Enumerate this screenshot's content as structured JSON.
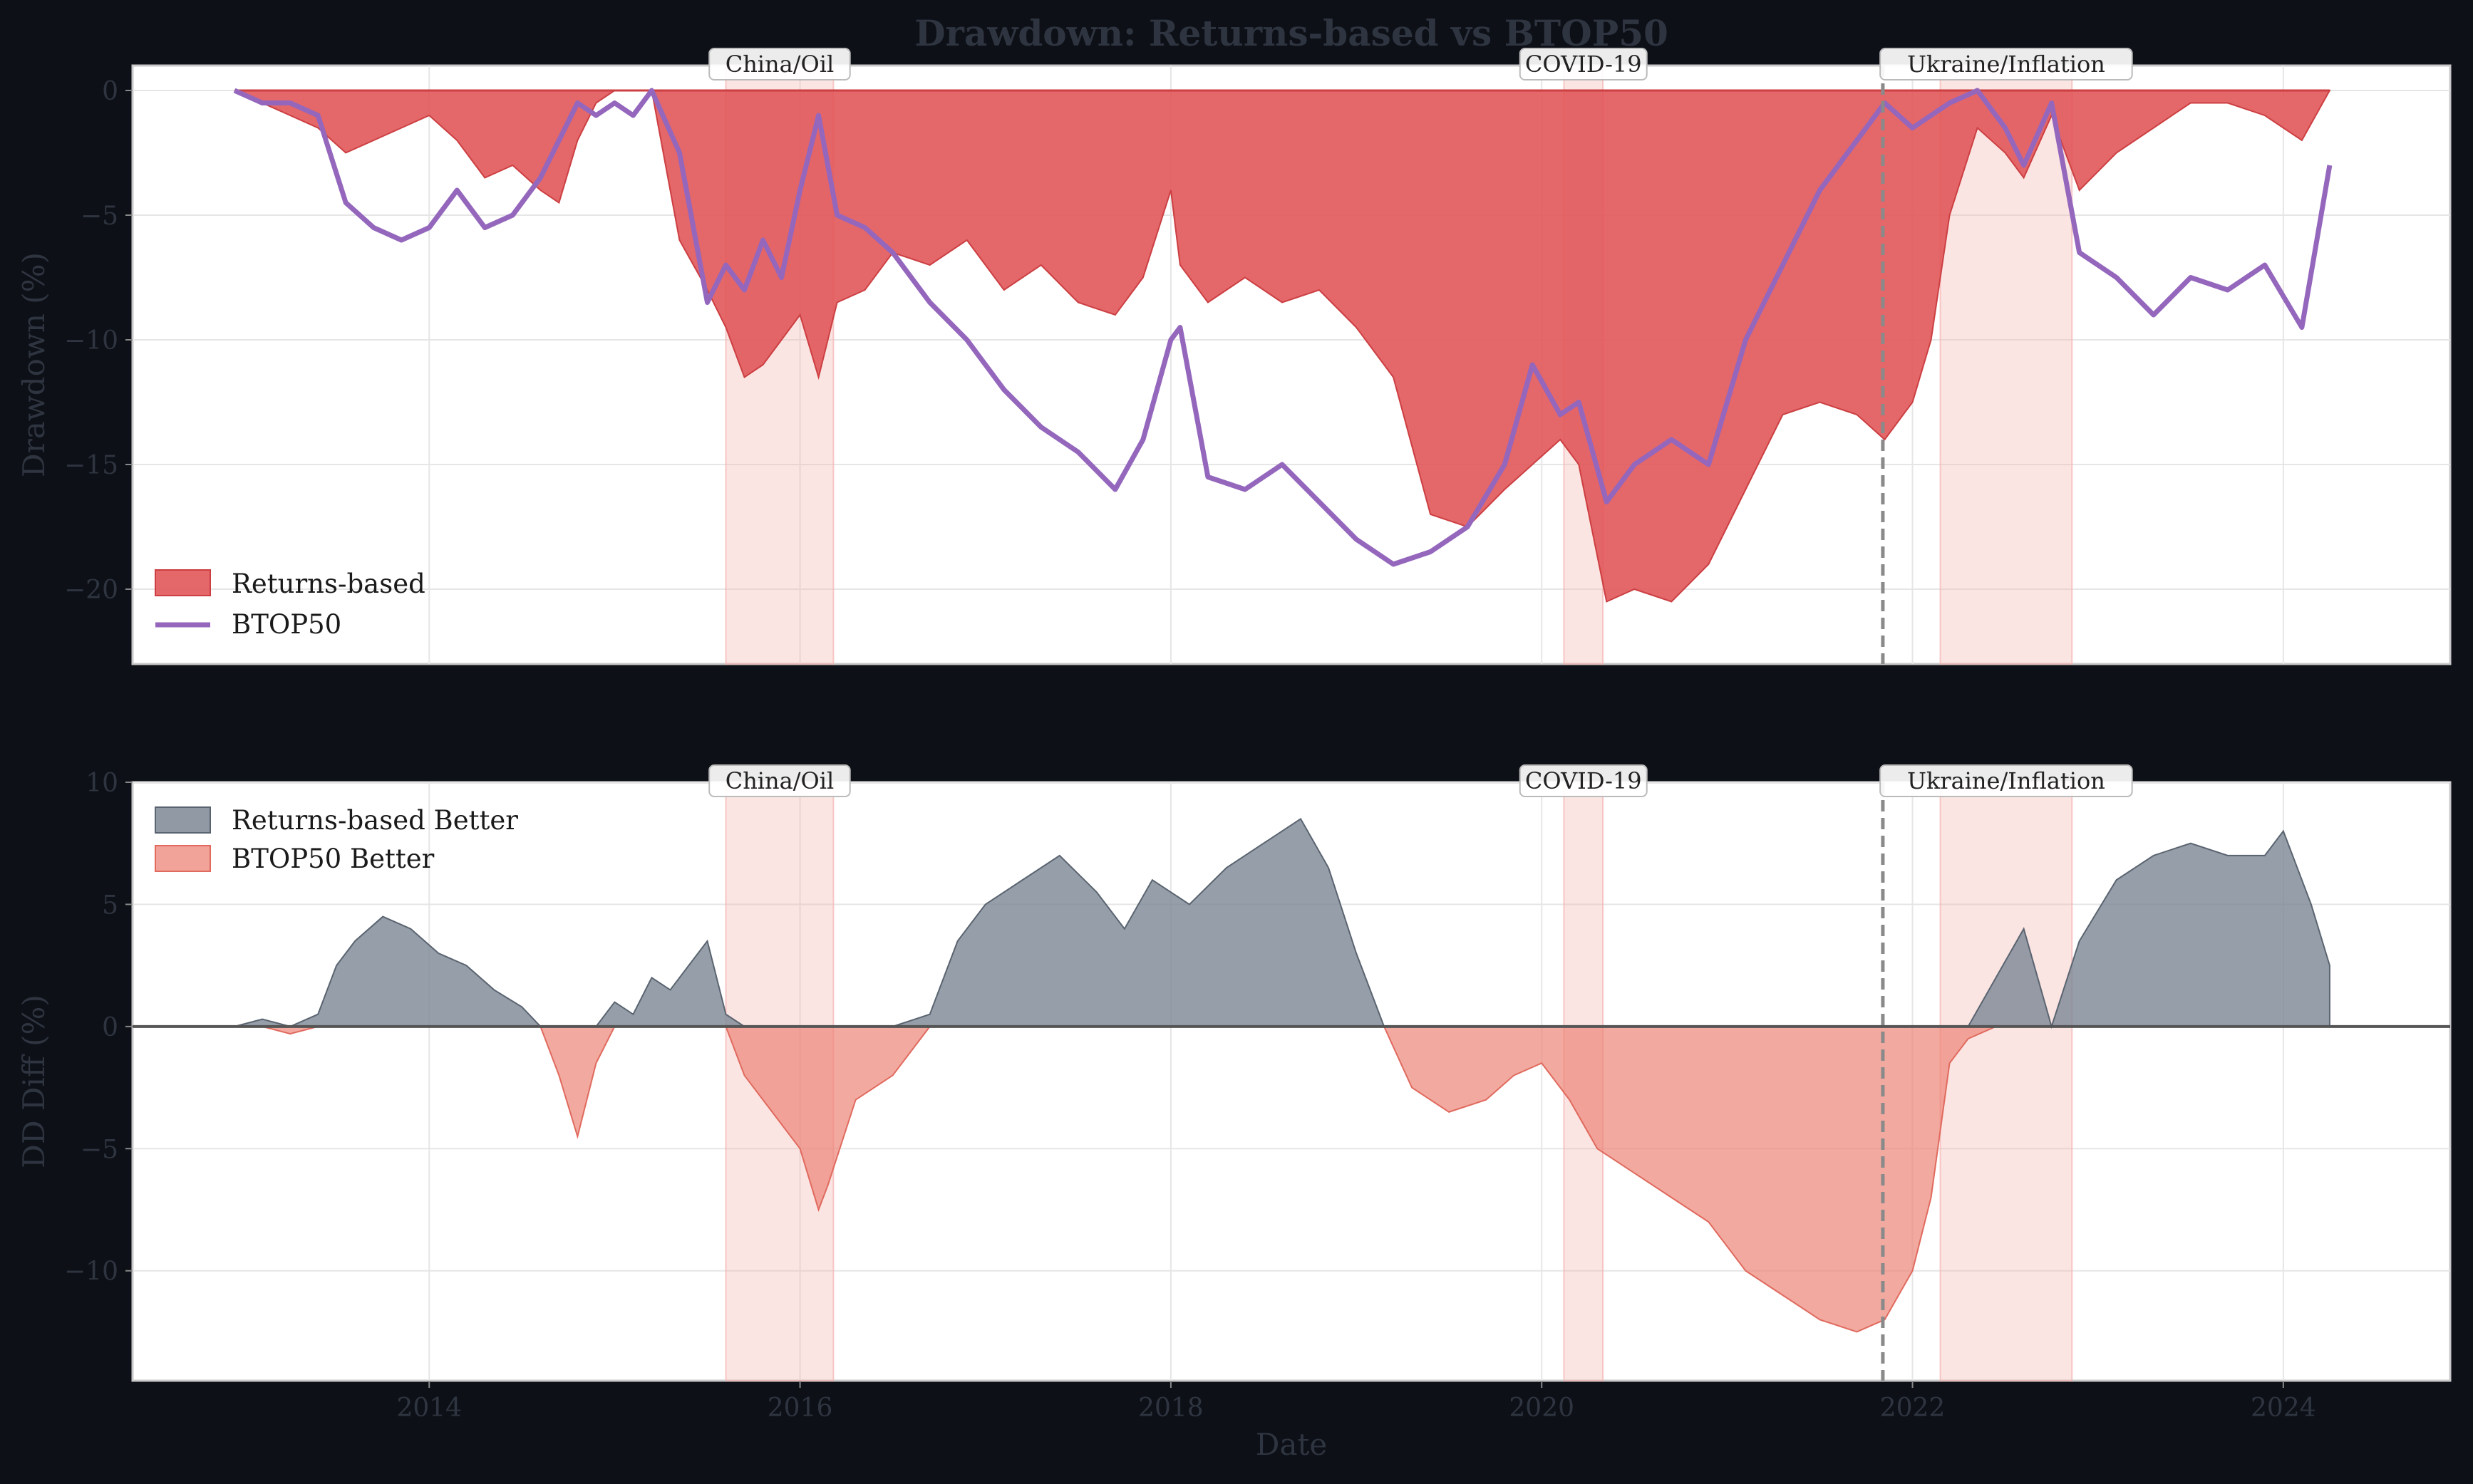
{
  "chart_data": [
    {
      "type": "area",
      "title": "Drawdown: Returns-based vs BTOP50",
      "xlabel": "",
      "ylabel": "Drawdown (%)",
      "xlim": [
        2012.4,
        2024.9
      ],
      "ylim": [
        -23,
        1
      ],
      "x_ticks": [
        2014,
        2016,
        2018,
        2020,
        2022,
        2024
      ],
      "y_ticks": [
        0,
        -5,
        -10,
        -15,
        -20
      ],
      "grid": true,
      "legend": "bottom-left",
      "x": [
        2012.95,
        2013.1,
        2013.25,
        2013.4,
        2013.55,
        2013.7,
        2013.85,
        2014.0,
        2014.15,
        2014.3,
        2014.45,
        2014.6,
        2014.7,
        2014.8,
        2014.9,
        2015.0,
        2015.1,
        2015.2,
        2015.35,
        2015.5,
        2015.6,
        2015.7,
        2015.8,
        2015.9,
        2016.0,
        2016.1,
        2016.2,
        2016.35,
        2016.5,
        2016.7,
        2016.9,
        2017.1,
        2017.3,
        2017.5,
        2017.7,
        2017.85,
        2018.0,
        2018.05,
        2018.2,
        2018.4,
        2018.6,
        2018.8,
        2019.0,
        2019.2,
        2019.4,
        2019.6,
        2019.8,
        2019.95,
        2020.1,
        2020.2,
        2020.35,
        2020.5,
        2020.7,
        2020.9,
        2021.1,
        2021.3,
        2021.5,
        2021.7,
        2021.85,
        2022.0,
        2022.1,
        2022.2,
        2022.35,
        2022.5,
        2022.6,
        2022.75,
        2022.9,
        2023.1,
        2023.3,
        2023.5,
        2023.7,
        2023.9,
        2024.1,
        2024.25
      ],
      "series": [
        {
          "name": "Returns-based",
          "color": "#e15759",
          "values": [
            0,
            -0.5,
            -1.0,
            -1.5,
            -2.5,
            -2.0,
            -1.5,
            -1.0,
            -2.0,
            -3.5,
            -3.0,
            -4.0,
            -4.5,
            -2.0,
            -0.5,
            0,
            0,
            0,
            -6.0,
            -8.0,
            -9.5,
            -11.5,
            -11.0,
            -10.0,
            -9.0,
            -11.5,
            -8.5,
            -8.0,
            -6.5,
            -7.0,
            -6.0,
            -8.0,
            -7.0,
            -8.5,
            -9.0,
            -7.5,
            -4.0,
            -7.0,
            -8.5,
            -7.5,
            -8.5,
            -8.0,
            -9.5,
            -11.5,
            -17.0,
            -17.5,
            -16.0,
            -15.0,
            -14.0,
            -15.0,
            -20.5,
            -20.0,
            -20.5,
            -19.0,
            -16.0,
            -13.0,
            -12.5,
            -13.0,
            -14.0,
            -12.5,
            -10.0,
            -5.0,
            -1.5,
            -2.5,
            -3.5,
            -1.0,
            -4.0,
            -2.5,
            -1.5,
            -0.5,
            -0.5,
            -1.0,
            -2.0,
            0
          ]
        },
        {
          "name": "BTOP50",
          "color": "#9467bd",
          "values": [
            0,
            -0.5,
            -0.5,
            -1.0,
            -4.5,
            -5.5,
            -6.0,
            -5.5,
            -4.0,
            -5.5,
            -5.0,
            -3.5,
            -2.0,
            -0.5,
            -1.0,
            -0.5,
            -1.0,
            0,
            -2.5,
            -8.5,
            -7.0,
            -8.0,
            -6.0,
            -7.5,
            -4.0,
            -1.0,
            -5.0,
            -5.5,
            -6.5,
            -8.5,
            -10.0,
            -12.0,
            -13.5,
            -14.5,
            -16.0,
            -14.0,
            -10.0,
            -9.5,
            -15.5,
            -16.0,
            -15.0,
            -16.5,
            -18.0,
            -19.0,
            -18.5,
            -17.5,
            -15.0,
            -11.0,
            -13.0,
            -12.5,
            -16.5,
            -15.0,
            -14.0,
            -15.0,
            -10.0,
            -7.0,
            -4.0,
            -2.0,
            -0.5,
            -1.5,
            -1.0,
            -0.5,
            0,
            -1.5,
            -3.0,
            -0.5,
            -6.5,
            -7.5,
            -9.0,
            -7.5,
            -8.0,
            -7.0,
            -9.5,
            -3.0
          ]
        }
      ],
      "events": [
        {
          "label": "China/Oil",
          "start": 2015.6,
          "end": 2016.18
        },
        {
          "label": "COVID-19",
          "start": 2020.12,
          "end": 2020.33
        },
        {
          "label": "Ukraine/Inflation",
          "start": 2022.15,
          "end": 2022.86
        }
      ],
      "vline": 2021.84,
      "colors": {
        "event": "#f4b4b0",
        "vline": "#8a8a8a"
      }
    },
    {
      "type": "area",
      "title": "",
      "xlabel": "Date",
      "ylabel": "DD Diff (%)",
      "xlim": [
        2012.4,
        2024.9
      ],
      "ylim": [
        -14.5,
        10
      ],
      "x_ticks": [
        2014,
        2016,
        2018,
        2020,
        2022,
        2024
      ],
      "y_ticks": [
        10,
        5,
        0,
        -5,
        -10
      ],
      "grid": true,
      "legend": "top-left",
      "legend_entries": [
        {
          "name": "Returns-based Better",
          "color": "#7c8794"
        },
        {
          "name": "BTOP50 Better",
          "color": "#ec8478"
        }
      ],
      "x": [
        2012.95,
        2013.1,
        2013.25,
        2013.4,
        2013.5,
        2013.6,
        2013.75,
        2013.9,
        2014.05,
        2014.2,
        2014.35,
        2014.5,
        2014.6,
        2014.7,
        2014.8,
        2014.9,
        2015.0,
        2015.1,
        2015.2,
        2015.3,
        2015.4,
        2015.5,
        2015.6,
        2015.7,
        2015.85,
        2016.0,
        2016.1,
        2016.15,
        2016.3,
        2016.5,
        2016.7,
        2016.85,
        2017.0,
        2017.2,
        2017.4,
        2017.6,
        2017.75,
        2017.9,
        2018.1,
        2018.3,
        2018.5,
        2018.7,
        2018.85,
        2019.0,
        2019.15,
        2019.3,
        2019.5,
        2019.7,
        2019.85,
        2020.0,
        2020.15,
        2020.3,
        2020.5,
        2020.7,
        2020.9,
        2021.1,
        2021.3,
        2021.5,
        2021.7,
        2021.85,
        2022.0,
        2022.1,
        2022.2,
        2022.3,
        2022.45,
        2022.6,
        2022.75,
        2022.9,
        2023.1,
        2023.3,
        2023.5,
        2023.7,
        2023.9,
        2024.0,
        2024.15,
        2024.25
      ],
      "series": [
        {
          "name": "DD Diff",
          "values": [
            0,
            0.3,
            -0.3,
            0.5,
            2.5,
            3.5,
            4.5,
            4.0,
            3.0,
            2.5,
            1.5,
            0.8,
            0,
            -2.0,
            -4.5,
            -1.5,
            1.0,
            0.5,
            2.0,
            1.5,
            2.5,
            3.5,
            0.5,
            -2.0,
            -3.5,
            -5.0,
            -7.5,
            -6.5,
            -3.0,
            -2.0,
            0.5,
            3.5,
            5.0,
            6.0,
            7.0,
            5.5,
            4.0,
            6.0,
            5.0,
            6.5,
            7.5,
            8.5,
            6.5,
            3.0,
            0,
            -2.5,
            -3.5,
            -3.0,
            -2.0,
            -1.5,
            -3.0,
            -5.0,
            -6.0,
            -7.0,
            -8.0,
            -10.0,
            -11.0,
            -12.0,
            -12.5,
            -12.0,
            -10.0,
            -7.0,
            -1.5,
            -0.5,
            2.0,
            4.0,
            0,
            3.5,
            6.0,
            7.0,
            7.5,
            7.0,
            7.0,
            8.0,
            5.0,
            2.5
          ]
        }
      ],
      "events": [
        {
          "label": "China/Oil",
          "start": 2015.6,
          "end": 2016.18
        },
        {
          "label": "COVID-19",
          "start": 2020.12,
          "end": 2020.33
        },
        {
          "label": "Ukraine/Inflation",
          "start": 2022.15,
          "end": 2022.86
        }
      ],
      "vline": 2021.84,
      "colors": {
        "positive": "#7c8794",
        "negative": "#ec8478",
        "event": "#f4b4b0",
        "vline": "#8a8a8a"
      }
    }
  ]
}
